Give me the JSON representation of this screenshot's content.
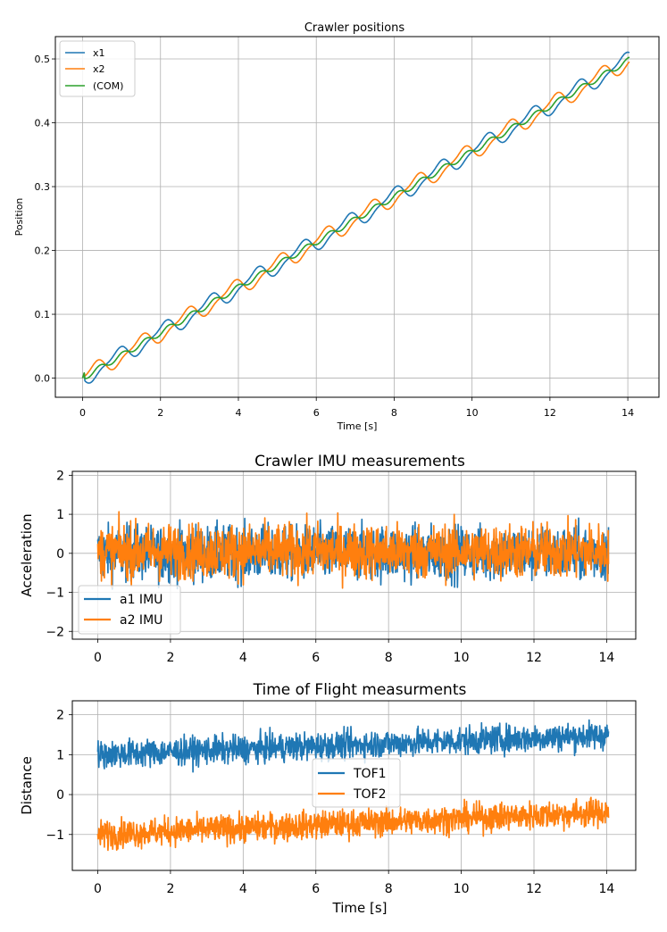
{
  "chart_data": [
    {
      "type": "line",
      "title": "Crawler positions",
      "xlabel": "Time [s]",
      "ylabel": "Position",
      "xlim": [
        -0.7,
        14.8
      ],
      "ylim": [
        -0.03,
        0.535
      ],
      "xticks": [
        0,
        2,
        4,
        6,
        8,
        10,
        12,
        14
      ],
      "yticks": [
        0.0,
        0.1,
        0.2,
        0.3,
        0.4,
        0.5
      ],
      "xtick_labels": [
        "0",
        "2",
        "4",
        "6",
        "8",
        "10",
        "12",
        "14"
      ],
      "ytick_labels": [
        "0.0",
        "0.1",
        "0.2",
        "0.3",
        "0.4",
        "0.5"
      ],
      "grid": true,
      "legend": "top-left",
      "series": [
        {
          "name": "x1",
          "color": "#1f77b4",
          "model": "stair_lag",
          "period": 1.18,
          "rate": 0.0355,
          "amp": 0.5
        },
        {
          "name": "x2",
          "color": "#ff7f0e",
          "model": "stair_lead",
          "period": 1.18,
          "rate": 0.0355,
          "amp": 0.5
        },
        {
          "name": "(COM)",
          "color": "#2ca02c",
          "model": "mean",
          "period": 1.18,
          "rate": 0.0355,
          "amp": 0.0
        }
      ]
    },
    {
      "type": "line",
      "title": "Crawler IMU measurements",
      "xlabel": "",
      "ylabel": "Acceleration",
      "xlim": [
        -0.7,
        14.8
      ],
      "ylim": [
        -2.2,
        2.1
      ],
      "xticks": [
        0,
        2,
        4,
        6,
        8,
        10,
        12,
        14
      ],
      "yticks": [
        -2,
        -1,
        0,
        1,
        2
      ],
      "xtick_labels": [
        "0",
        "2",
        "4",
        "6",
        "8",
        "10",
        "12",
        "14"
      ],
      "ytick_labels": [
        "−2",
        "−1",
        "0",
        "1",
        "2"
      ],
      "grid": true,
      "legend": "bottom-left",
      "series": [
        {
          "name": "a1 IMU",
          "color": "#1f77b4",
          "mean": 0.0,
          "trend": 0.0,
          "noise": 0.5,
          "clip": [
            -1.9,
            1.5
          ]
        },
        {
          "name": "a2 IMU",
          "color": "#ff7f0e",
          "mean": 0.05,
          "trend": 0.0,
          "noise": 0.5,
          "clip": [
            -2.05,
            1.9
          ]
        }
      ]
    },
    {
      "type": "line",
      "title": "Time of Flight measurments",
      "xlabel": "Time [s]",
      "ylabel": "Distance",
      "xlim": [
        -0.7,
        14.8
      ],
      "ylim": [
        -1.9,
        2.35
      ],
      "xticks": [
        0,
        2,
        4,
        6,
        8,
        10,
        12,
        14
      ],
      "yticks": [
        -1,
        0,
        1,
        2
      ],
      "xtick_labels": [
        "0",
        "2",
        "4",
        "6",
        "8",
        "10",
        "12",
        "14"
      ],
      "ytick_labels": [
        "−1",
        "0",
        "1",
        "2"
      ],
      "grid": true,
      "legend": "center",
      "series": [
        {
          "name": "TOF1",
          "color": "#1f77b4",
          "mean": 1.0,
          "trend": 0.035,
          "noise": 0.25,
          "clip": [
            0.2,
            2.2
          ]
        },
        {
          "name": "TOF2",
          "color": "#ff7f0e",
          "mean": -1.0,
          "trend": 0.04,
          "noise": 0.25,
          "clip": [
            -1.6,
            0.3
          ]
        }
      ]
    }
  ]
}
